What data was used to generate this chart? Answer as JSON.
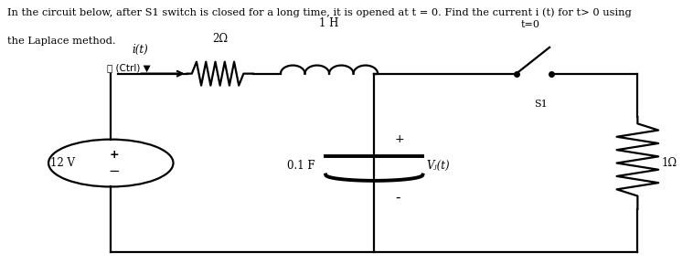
{
  "title_line1": "In the circuit below, after S1 switch is closed for a long time, it is opened at t = 0. Find the current i (t) for t> 0 using",
  "title_line2": "the Laplace method.",
  "ctrl_text": "📋 (Ctrl) ▼",
  "bg_color": "#ffffff",
  "labels": {
    "i_t": "i(t)",
    "resistor1": "2Ω",
    "inductor": "1 H",
    "capacitor": "0.1 F",
    "vc": "Vⱼ(t)",
    "resistor2": "1Ω",
    "voltage": "12 V",
    "t0": "t=0",
    "s1": "S1",
    "plus": "+",
    "minus": "-"
  }
}
